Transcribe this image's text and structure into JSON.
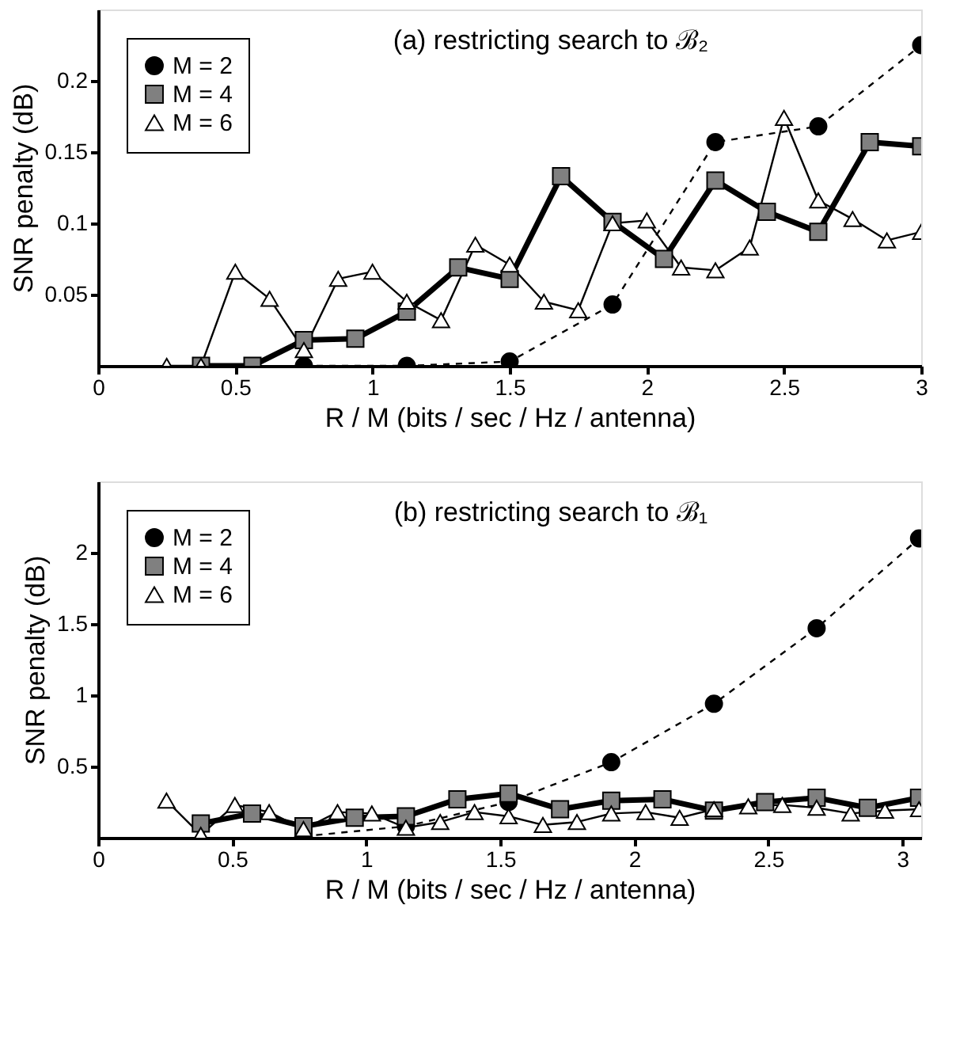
{
  "chart_data": [
    {
      "type": "line",
      "title": "(a) restricting search to ℬ₂",
      "xlabel": "R / M (bits / sec / Hz / antenna)",
      "ylabel": "SNR penalty  (dB)",
      "xlim": [
        0,
        3
      ],
      "ylim": [
        0,
        0.25
      ],
      "xticks": [
        0,
        0.5,
        1,
        1.5,
        2,
        2.5,
        3
      ],
      "yticks": [
        0.05,
        0.1,
        0.15,
        0.2
      ],
      "grid": false,
      "legend": "top left",
      "series": [
        {
          "name": "M = 2",
          "color": "#000000",
          "marker": "circle",
          "line_style": "dashed",
          "x": [
            0.75,
            1.125,
            1.5,
            1.875,
            2.25,
            2.625,
            3.0
          ],
          "values": [
            0,
            0,
            0.003,
            0.043,
            0.157,
            0.168,
            0.225
          ]
        },
        {
          "name": "M = 4",
          "color": "#808080",
          "marker": "square",
          "line_style": "solid",
          "x": [
            0.375,
            0.5625,
            0.75,
            0.9375,
            1.125,
            1.3125,
            1.5,
            1.6875,
            1.875,
            2.0625,
            2.25,
            2.4375,
            2.625,
            2.8125,
            3.0
          ],
          "values": [
            0,
            0,
            0.018,
            0.019,
            0.038,
            0.069,
            0.061,
            0.133,
            0.101,
            0.075,
            0.13,
            0.108,
            0.094,
            0.157,
            0.154
          ]
        },
        {
          "name": "M = 6",
          "color": "#ffffff",
          "marker": "triangle",
          "line_style": "solid",
          "x": [
            0.25,
            0.375,
            0.5,
            0.625,
            0.75,
            0.875,
            1.0,
            1.125,
            1.25,
            1.375,
            1.5,
            1.625,
            1.75,
            1.875,
            2.0,
            2.125,
            2.25,
            2.375,
            2.5,
            2.625,
            2.75,
            2.875,
            3.0
          ],
          "values": [
            0,
            0,
            0.066,
            0.047,
            0.011,
            0.061,
            0.066,
            0.045,
            0.032,
            0.085,
            0.071,
            0.045,
            0.039,
            0.1,
            0.102,
            0.069,
            0.067,
            0.083,
            0.174,
            0.116,
            0.103,
            0.088,
            0.094
          ]
        }
      ]
    },
    {
      "type": "line",
      "title": "(b) restricting search to ℬ₁",
      "xlabel": "R / M (bits / sec / Hz / antenna)",
      "ylabel": "SNR penalty  (dB)",
      "xlim": [
        0,
        3.07
      ],
      "ylim": [
        0,
        2.5
      ],
      "xticks": [
        0,
        0.5,
        1,
        1.5,
        2,
        2.5,
        3
      ],
      "yticks": [
        0.5,
        1,
        1.5,
        2
      ],
      "grid": false,
      "legend": "top left",
      "series": [
        {
          "name": "M = 2",
          "color": "#000000",
          "marker": "circle",
          "line_style": "dashed",
          "x": [
            0.766,
            1.148,
            1.531,
            1.914,
            2.297,
            2.68,
            3.062
          ],
          "values": [
            0.01,
            0.08,
            0.25,
            0.53,
            0.94,
            1.47,
            2.1
          ]
        },
        {
          "name": "M = 4",
          "color": "#808080",
          "marker": "square",
          "line_style": "solid",
          "x": [
            0.383,
            0.574,
            0.766,
            0.957,
            1.148,
            1.34,
            1.531,
            1.723,
            1.914,
            2.105,
            2.297,
            2.488,
            2.68,
            2.871,
            3.062
          ],
          "values": [
            0.1,
            0.17,
            0.08,
            0.14,
            0.15,
            0.27,
            0.31,
            0.2,
            0.26,
            0.27,
            0.19,
            0.25,
            0.28,
            0.21,
            0.28
          ]
        },
        {
          "name": "M = 6",
          "color": "#ffffff",
          "marker": "triangle",
          "line_style": "solid",
          "x": [
            0.255,
            0.383,
            0.51,
            0.638,
            0.766,
            0.893,
            1.021,
            1.148,
            1.276,
            1.404,
            1.531,
            1.659,
            1.786,
            1.914,
            2.042,
            2.169,
            2.297,
            2.425,
            2.552,
            2.68,
            2.807,
            2.935,
            3.062
          ],
          "values": [
            0.26,
            0.02,
            0.23,
            0.18,
            0.06,
            0.18,
            0.17,
            0.07,
            0.11,
            0.18,
            0.15,
            0.09,
            0.11,
            0.17,
            0.18,
            0.14,
            0.2,
            0.22,
            0.23,
            0.21,
            0.17,
            0.19,
            0.2
          ]
        }
      ]
    }
  ]
}
